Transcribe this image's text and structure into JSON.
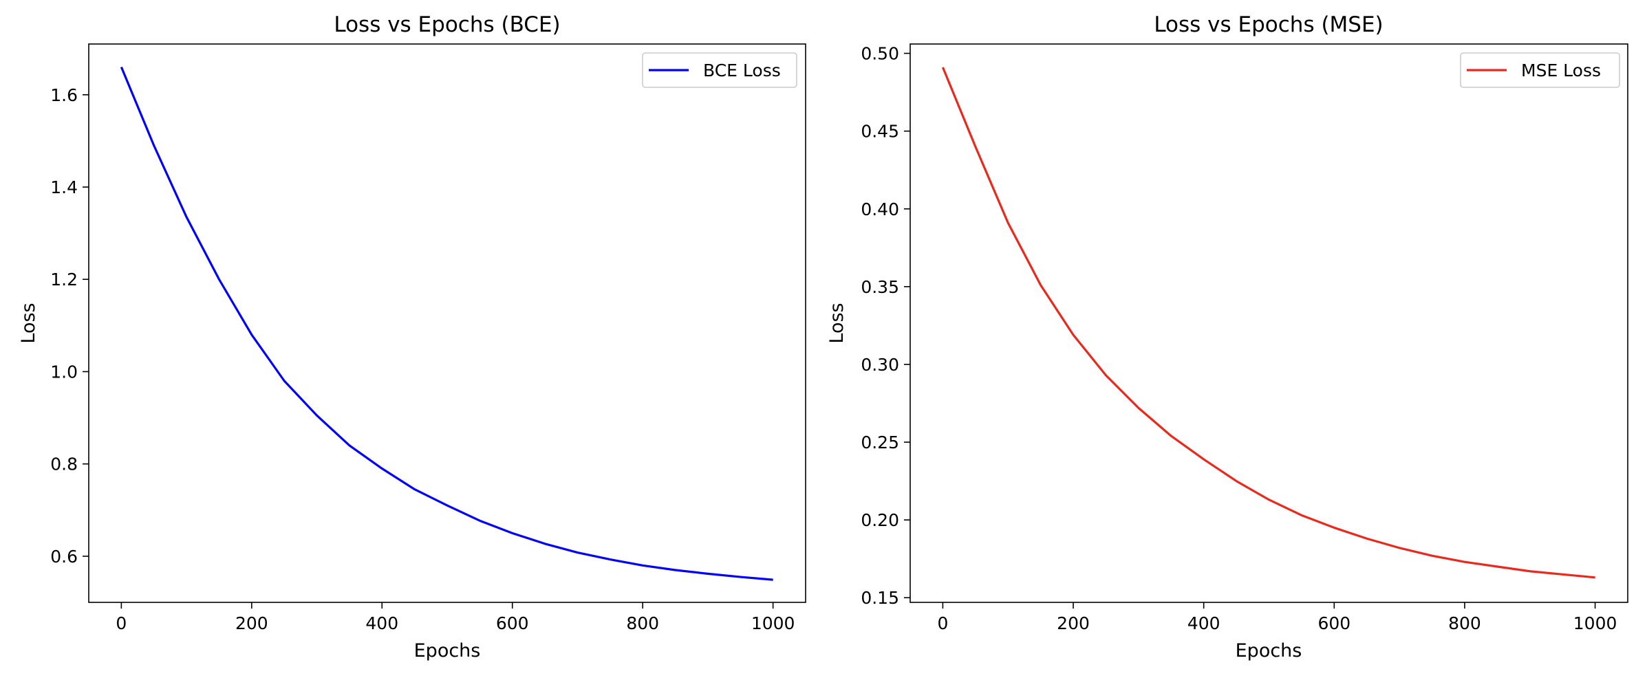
{
  "chart_data": [
    {
      "type": "line",
      "title": "Loss vs Epochs (BCE)",
      "xlabel": "Epochs",
      "ylabel": "Loss",
      "xlim": [
        -50,
        1050
      ],
      "ylim": [
        0.5,
        1.71
      ],
      "xticks": [
        0,
        200,
        400,
        600,
        800,
        1000
      ],
      "xtick_labels": [
        "0",
        "200",
        "400",
        "600",
        "800",
        "1000"
      ],
      "yticks": [
        0.6,
        0.8,
        1.0,
        1.2,
        1.4,
        1.6
      ],
      "ytick_labels": [
        "0.6",
        "0.8",
        "1.0",
        "1.2",
        "1.4",
        "1.6"
      ],
      "grid": false,
      "legend_position": "top-right",
      "series": [
        {
          "name": "BCE Loss",
          "color": "#0000ff",
          "x": [
            0,
            50,
            100,
            150,
            200,
            250,
            300,
            350,
            400,
            450,
            500,
            550,
            600,
            650,
            700,
            750,
            800,
            850,
            900,
            950,
            1000
          ],
          "y": [
            1.66,
            1.49,
            1.335,
            1.2,
            1.08,
            0.98,
            0.905,
            0.84,
            0.79,
            0.745,
            0.71,
            0.677,
            0.65,
            0.627,
            0.608,
            0.593,
            0.58,
            0.57,
            0.562,
            0.555,
            0.549
          ]
        }
      ]
    },
    {
      "type": "line",
      "title": "Loss vs Epochs (MSE)",
      "xlabel": "Epochs",
      "ylabel": "Loss",
      "xlim": [
        -50,
        1050
      ],
      "ylim": [
        0.147,
        0.506
      ],
      "xticks": [
        0,
        200,
        400,
        600,
        800,
        1000
      ],
      "xtick_labels": [
        "0",
        "200",
        "400",
        "600",
        "800",
        "1000"
      ],
      "yticks": [
        0.15,
        0.2,
        0.25,
        0.3,
        0.35,
        0.4,
        0.45,
        0.5
      ],
      "ytick_labels": [
        "0.15",
        "0.20",
        "0.25",
        "0.30",
        "0.35",
        "0.40",
        "0.45",
        "0.50"
      ],
      "grid": false,
      "legend_position": "top-right",
      "series": [
        {
          "name": "MSE Loss",
          "color": "#e8291c",
          "x": [
            0,
            50,
            100,
            150,
            200,
            250,
            300,
            350,
            400,
            450,
            500,
            550,
            600,
            650,
            700,
            750,
            800,
            850,
            900,
            950,
            1000
          ],
          "y": [
            0.491,
            0.44,
            0.391,
            0.351,
            0.319,
            0.293,
            0.272,
            0.254,
            0.239,
            0.225,
            0.213,
            0.203,
            0.195,
            0.188,
            0.182,
            0.177,
            0.173,
            0.17,
            0.167,
            0.165,
            0.163
          ]
        }
      ]
    }
  ]
}
